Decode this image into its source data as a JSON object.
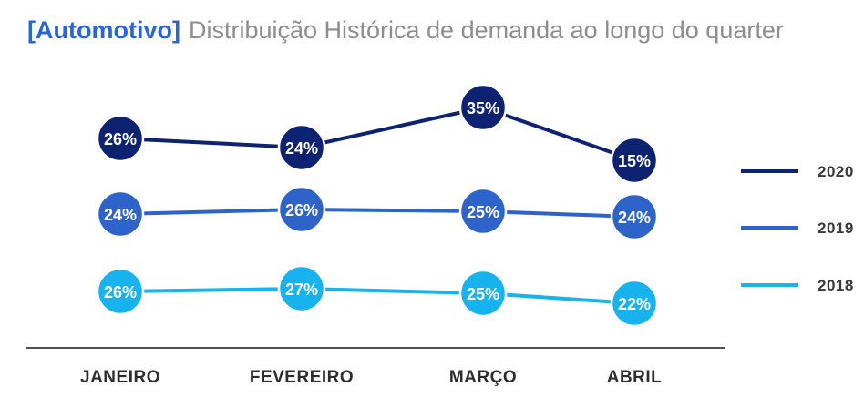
{
  "title": {
    "prefix": "[Automotivo]",
    "rest": "Distribuição Histórica de demanda ao longo do quarter"
  },
  "colors": {
    "title_prefix": "#2a64d9",
    "title_rest": "#8d8d8d",
    "axis_line": "#4f4f4f",
    "month_label": "#2d2d2d",
    "legend_label": "#3a3a3a",
    "point_label": "#ffffff",
    "background": "#ffffff"
  },
  "chart_data": {
    "type": "line",
    "title": "[Automotivo] Distribuição Histórica de demanda ao longo do quarter",
    "categories": [
      "JANEIRO",
      "FEVEREIRO",
      "MARÇO",
      "ABRIL"
    ],
    "series": [
      {
        "name": "2020",
        "color": "#0d2270",
        "values": [
          26,
          24,
          35,
          15
        ]
      },
      {
        "name": "2019",
        "color": "#2e64c9",
        "values": [
          24,
          26,
          25,
          24
        ]
      },
      {
        "name": "2018",
        "color": "#17b3ef",
        "values": [
          26,
          27,
          25,
          22
        ]
      }
    ],
    "value_suffix": "%",
    "point_labels_shown": true,
    "legend_position": "right",
    "grid": false,
    "xlabel": "",
    "ylabel": ""
  }
}
